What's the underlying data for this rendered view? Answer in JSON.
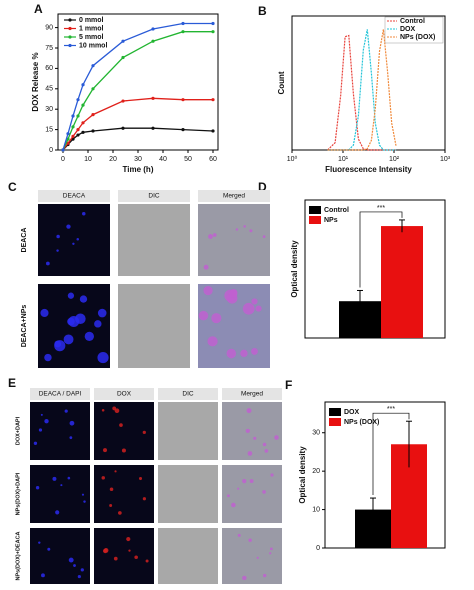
{
  "panel_labels": [
    "A",
    "B",
    "C",
    "D",
    "E",
    "F"
  ],
  "chart_data": [
    {
      "type": "line",
      "x_label": "Time (h)",
      "y_label": "DOX Release %",
      "xlim": [
        -2,
        62
      ],
      "ylim": [
        0,
        100
      ],
      "xticks": [
        0,
        10,
        20,
        30,
        40,
        50,
        60
      ],
      "yticks": [
        0,
        15,
        30,
        45,
        60,
        75,
        90
      ],
      "markers": true,
      "legend": "upper left",
      "x": [
        0,
        2,
        4,
        6,
        8,
        12,
        24,
        36,
        48,
        60
      ],
      "series": [
        {
          "name": "0 mmol",
          "color": "#111111",
          "values": [
            0,
            4,
            8,
            11,
            13,
            14,
            16,
            16,
            15,
            14
          ]
        },
        {
          "name": "1 mmol",
          "color": "#e0201a",
          "values": [
            0,
            5,
            10,
            15,
            20,
            26,
            36,
            38,
            37,
            37
          ]
        },
        {
          "name": "5 mmol",
          "color": "#22b531",
          "values": [
            0,
            8,
            17,
            25,
            33,
            45,
            68,
            80,
            87,
            87
          ]
        },
        {
          "name": "10 mmol",
          "color": "#2a5bd7",
          "values": [
            0,
            12,
            25,
            37,
            48,
            62,
            80,
            89,
            93,
            93
          ]
        }
      ]
    },
    {
      "type": "line",
      "x_label": "Fluorescence Intensity",
      "y_label": "Count",
      "xscale": "log",
      "xlim": [
        1,
        1000
      ],
      "ylim": [
        0,
        110
      ],
      "xticks": [
        {
          "value": 1,
          "label": "10⁰"
        },
        {
          "value": 10,
          "label": "10¹"
        },
        {
          "value": 100,
          "label": "10²"
        },
        {
          "value": 1000,
          "label": "10³"
        }
      ],
      "legend": "upper right",
      "x": [
        5,
        7,
        9,
        11,
        13,
        16,
        20,
        25,
        30,
        36,
        43,
        52,
        62,
        75,
        90,
        110
      ],
      "series": [
        {
          "name": "Control",
          "color": "#e8413a",
          "values": [
            0,
            6,
            45,
            93,
            94,
            46,
            9,
            1,
            0,
            0,
            0,
            0,
            0,
            0,
            0,
            0
          ]
        },
        {
          "name": "DOX",
          "color": "#22c4d8",
          "values": [
            0,
            0,
            0,
            0,
            0,
            4,
            28,
            82,
            99,
            63,
            22,
            4,
            0,
            0,
            0,
            0
          ]
        },
        {
          "name": "NPs (DOX)",
          "color": "#f08a3c",
          "values": [
            0,
            0,
            0,
            0,
            0,
            0,
            0,
            0,
            1,
            8,
            34,
            81,
            99,
            64,
            22,
            3
          ]
        }
      ]
    },
    {
      "type": "bar",
      "y_label": "Optical density",
      "ylim": [
        0,
        90
      ],
      "legend": "upper left",
      "annotation": "***",
      "series": [
        {
          "name": "Control",
          "color": "#000000",
          "values": [
            24
          ],
          "errors": [
            7
          ]
        },
        {
          "name": "NPs",
          "color": "#e81010",
          "values": [
            73
          ],
          "errors": [
            4
          ]
        }
      ]
    },
    {
      "type": "bar",
      "y_label": "Optical density",
      "ylim": [
        0,
        38
      ],
      "yticks": [
        0,
        10,
        20,
        30
      ],
      "legend": "upper left",
      "annotation": "***",
      "series": [
        {
          "name": "DOX",
          "color": "#000000",
          "values": [
            10
          ],
          "errors": [
            3
          ]
        },
        {
          "name": "NPs (DOX)",
          "color": "#e81010",
          "values": [
            27
          ],
          "errors": [
            6
          ]
        }
      ]
    }
  ],
  "microscopy": [
    {
      "headers": [
        "DEACA",
        "DIC",
        "Merged"
      ],
      "rows": [
        "DEACA",
        "DEACA+NPs"
      ]
    },
    {
      "headers": [
        "DEACA / DAPI",
        "DOX",
        "DIC",
        "Merged"
      ],
      "rows": [
        "DOX+DAPI",
        "NPs(DOX)+DAPI",
        "NPs(DOX)+DEACA"
      ]
    }
  ]
}
